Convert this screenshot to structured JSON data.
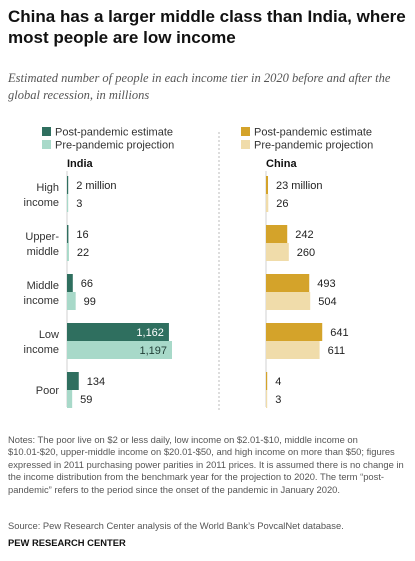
{
  "title": "China has a larger middle class than India, where most people are low income",
  "subtitle": "Estimated number of people in each income tier in 2020 before and after the global recession, in millions",
  "colors": {
    "india_post": "#2f6f5f",
    "india_pre": "#a8d9c9",
    "china_post": "#d4a32a",
    "china_pre": "#f0dcaa"
  },
  "chart_data": [
    {
      "type": "bar",
      "title": "India",
      "categories": [
        "High income",
        "Upper-middle",
        "Middle income",
        "Low income",
        "Poor"
      ],
      "category_labels": [
        [
          "High",
          "income"
        ],
        [
          "Upper-",
          "middle"
        ],
        [
          "Middle",
          "income"
        ],
        [
          "Low",
          "income"
        ],
        [
          "Poor"
        ]
      ],
      "series": [
        {
          "name": "Post-pandemic estimate",
          "values": [
            2,
            16,
            66,
            1162,
            134
          ],
          "labels": [
            "2 million",
            "16",
            "66",
            "1,162",
            "134"
          ]
        },
        {
          "name": "Pre-pandemic projection",
          "values": [
            3,
            22,
            99,
            1197,
            59
          ],
          "labels": [
            "3",
            "22",
            "99",
            "1,197",
            "59"
          ]
        }
      ],
      "orientation": "horizontal",
      "legend_position": "top"
    },
    {
      "type": "bar",
      "title": "China",
      "categories": [
        "High income",
        "Upper-middle",
        "Middle income",
        "Low income",
        "Poor"
      ],
      "series": [
        {
          "name": "Post-pandemic estimate",
          "values": [
            23,
            242,
            493,
            641,
            4
          ],
          "labels": [
            "23 million",
            "242",
            "493",
            "641",
            "4"
          ]
        },
        {
          "name": "Pre-pandemic projection",
          "values": [
            26,
            260,
            504,
            611,
            3
          ],
          "labels": [
            "26",
            "260",
            "504",
            "611",
            "3"
          ]
        }
      ],
      "orientation": "horizontal",
      "legend_position": "top"
    }
  ],
  "notes": "Notes: The poor live on $2 or less daily, low income on $2.01-$10, middle income on $10.01-$20, upper-middle income on $20.01-$50, and high income on more than $50; figures expressed in 2011 purchasing power parities in 2011 prices. It is assumed there is no change in the income distribution from the benchmark year for the projection to 2020. The term “post-pandemic” refers to the period since the onset of the pandemic in January 2020.",
  "source": "Source: Pew Research Center analysis of the World Bank’s PovcalNet database.",
  "org": "PEW RESEARCH CENTER"
}
